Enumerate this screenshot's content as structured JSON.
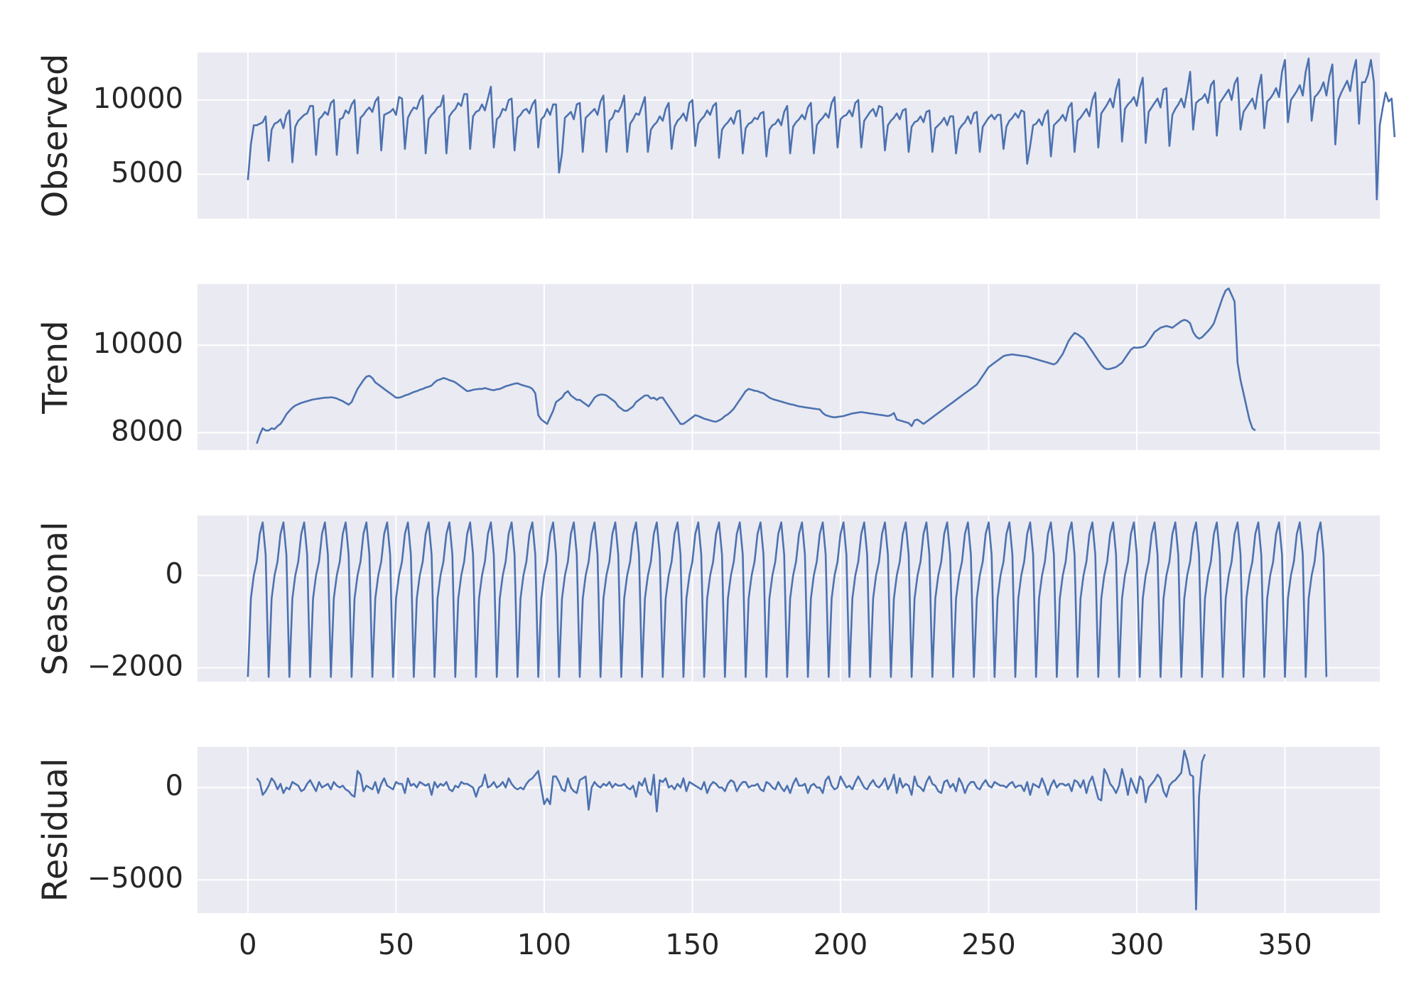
{
  "chart_data": [
    {
      "type": "line",
      "ylabel": "Observed",
      "ylim": [
        2000,
        13200
      ],
      "yticks": [
        5000,
        10000
      ],
      "ytick_labels": [
        "5000",
        "10000"
      ],
      "grid": true,
      "color": "#4c72b0",
      "values": [
        4600,
        7000,
        8300,
        8300,
        8400,
        8500,
        8900,
        5900,
        8000,
        8400,
        8500,
        8700,
        8100,
        9000,
        9300,
        5800,
        8200,
        8600,
        8800,
        9000,
        9100,
        9600,
        9600,
        6300,
        8700,
        8900,
        9200,
        9000,
        9800,
        10000,
        6300,
        8700,
        8800,
        9300,
        9100,
        9700,
        10000,
        6400,
        8800,
        9000,
        9300,
        9500,
        9200,
        9900,
        10200,
        6600,
        9000,
        9100,
        9200,
        9400,
        9000,
        10200,
        10100,
        6700,
        8800,
        9200,
        9500,
        9400,
        10000,
        10300,
        6400,
        8700,
        9000,
        9200,
        9500,
        9600,
        10300,
        6400,
        8900,
        9200,
        9400,
        9800,
        9600,
        10400,
        10400,
        6700,
        8900,
        9200,
        9300,
        9700,
        9300,
        10100,
        10900,
        6800,
        8700,
        8900,
        9400,
        9300,
        10000,
        10100,
        6600,
        8800,
        9000,
        9300,
        9400,
        9100,
        9700,
        10000,
        6800,
        8700,
        8900,
        9400,
        9000,
        9700,
        9700,
        5100,
        6400,
        8800,
        9000,
        9200,
        8700,
        9700,
        9800,
        6500,
        8800,
        9000,
        9200,
        9400,
        9000,
        9900,
        10300,
        6500,
        8600,
        8800,
        9300,
        9200,
        9600,
        10300,
        6500,
        8400,
        8700,
        9100,
        9000,
        9600,
        10200,
        6500,
        8000,
        8300,
        8500,
        8900,
        8600,
        9400,
        9800,
        6700,
        8200,
        8600,
        8800,
        9100,
        8600,
        9800,
        10000,
        6900,
        8400,
        8700,
        8900,
        9300,
        9000,
        9600,
        9800,
        6100,
        8000,
        8300,
        8500,
        8800,
        8400,
        9200,
        9300,
        6400,
        8100,
        8400,
        8500,
        8800,
        8700,
        9100,
        9200,
        6200,
        8000,
        8300,
        8400,
        8700,
        8300,
        9200,
        9600,
        6400,
        8200,
        8500,
        8700,
        9000,
        8700,
        9500,
        9800,
        6400,
        8300,
        8600,
        8800,
        9100,
        8800,
        9800,
        10200,
        6800,
        8700,
        8900,
        9000,
        9300,
        8900,
        9800,
        10000,
        6800,
        8600,
        8900,
        9200,
        9400,
        8900,
        9600,
        9500,
        6600,
        8300,
        8600,
        8800,
        9100,
        8700,
        9300,
        9400,
        6500,
        8200,
        8500,
        8600,
        8900,
        8500,
        9200,
        9300,
        6500,
        8100,
        8300,
        8500,
        8800,
        8300,
        8900,
        8900,
        6400,
        8000,
        8300,
        8500,
        8900,
        8400,
        9100,
        9200,
        6500,
        8200,
        8500,
        8800,
        9000,
        8700,
        9000,
        9000,
        6700,
        8200,
        8600,
        8800,
        9100,
        8800,
        9300,
        9200,
        5700,
        6900,
        8300,
        8400,
        8700,
        8300,
        9000,
        9300,
        6200,
        8300,
        8500,
        8700,
        9000,
        8600,
        9500,
        9800,
        6500,
        8600,
        8800,
        9100,
        9400,
        8900,
        10000,
        10500,
        6800,
        9100,
        9400,
        9700,
        10100,
        9500,
        10700,
        11400,
        7200,
        9400,
        9700,
        9900,
        10200,
        9600,
        10800,
        11500,
        7100,
        9200,
        9500,
        9800,
        10100,
        9500,
        10700,
        10800,
        6900,
        9000,
        9400,
        9700,
        10100,
        9500,
        10600,
        11900,
        8000,
        9800,
        10000,
        10100,
        10400,
        9800,
        11000,
        11300,
        7600,
        9800,
        10100,
        10400,
        10700,
        10000,
        11100,
        11500,
        8000,
        9200,
        9500,
        9800,
        10100,
        9400,
        10800,
        11700,
        8100,
        9900,
        10100,
        10400,
        10800,
        10200,
        11900,
        12700,
        8500,
        10000,
        10300,
        10600,
        11000,
        10300,
        11900,
        12800,
        8600,
        10200,
        10400,
        10700,
        11200,
        10300,
        11600,
        12400,
        7000,
        10000,
        10500,
        10900,
        11300,
        10600,
        11900,
        12700,
        8400,
        11200,
        11200,
        11700,
        12700,
        11200,
        3300,
        8300,
        9500,
        10500,
        9900,
        10100,
        7500
      ],
      "x_start": 0,
      "xlim": [
        -17,
        382
      ]
    },
    {
      "type": "line",
      "ylabel": "Trend",
      "ylim": [
        7600,
        11400
      ],
      "yticks": [
        8000,
        10000
      ],
      "ytick_labels": [
        "8000",
        "10000"
      ],
      "grid": true,
      "color": "#4c72b0",
      "values": [
        7750,
        7950,
        8100,
        8050,
        8050,
        8100,
        8080,
        8150,
        8200,
        8300,
        8420,
        8500,
        8570,
        8620,
        8650,
        8680,
        8700,
        8720,
        8740,
        8760,
        8770,
        8780,
        8790,
        8800,
        8800,
        8810,
        8800,
        8780,
        8750,
        8720,
        8680,
        8640,
        8700,
        8850,
        9000,
        9100,
        9200,
        9280,
        9300,
        9250,
        9150,
        9100,
        9050,
        9000,
        8950,
        8900,
        8850,
        8800,
        8800,
        8820,
        8850,
        8870,
        8900,
        8930,
        8950,
        8980,
        9000,
        9030,
        9050,
        9080,
        9150,
        9200,
        9220,
        9250,
        9230,
        9200,
        9180,
        9150,
        9100,
        9050,
        9000,
        8950,
        8960,
        8980,
        8990,
        9000,
        9000,
        9020,
        9000,
        8980,
        8970,
        8990,
        9000,
        9030,
        9060,
        9080,
        9100,
        9120,
        9130,
        9100,
        9080,
        9060,
        9040,
        9000,
        8900,
        8400,
        8300,
        8250,
        8200,
        8350,
        8500,
        8700,
        8750,
        8800,
        8900,
        8950,
        8850,
        8800,
        8750,
        8750,
        8700,
        8650,
        8600,
        8700,
        8800,
        8850,
        8870,
        8870,
        8850,
        8800,
        8750,
        8700,
        8600,
        8550,
        8500,
        8500,
        8550,
        8600,
        8700,
        8750,
        8800,
        8850,
        8850,
        8780,
        8800,
        8750,
        8800,
        8800,
        8700,
        8600,
        8500,
        8400,
        8300,
        8200,
        8200,
        8250,
        8300,
        8350,
        8400,
        8380,
        8350,
        8320,
        8300,
        8280,
        8260,
        8250,
        8280,
        8320,
        8380,
        8420,
        8480,
        8550,
        8650,
        8750,
        8850,
        8950,
        9000,
        8980,
        8960,
        8950,
        8920,
        8900,
        8850,
        8800,
        8770,
        8750,
        8730,
        8710,
        8690,
        8670,
        8650,
        8640,
        8620,
        8600,
        8590,
        8580,
        8570,
        8560,
        8550,
        8540,
        8530,
        8450,
        8400,
        8380,
        8360,
        8350,
        8360,
        8370,
        8380,
        8400,
        8420,
        8440,
        8450,
        8460,
        8470,
        8460,
        8450,
        8440,
        8430,
        8420,
        8410,
        8400,
        8390,
        8380,
        8400,
        8450,
        8300,
        8280,
        8260,
        8240,
        8220,
        8150,
        8280,
        8300,
        8250,
        8200,
        8250,
        8300,
        8350,
        8400,
        8450,
        8500,
        8550,
        8600,
        8650,
        8700,
        8750,
        8800,
        8850,
        8900,
        8950,
        9000,
        9050,
        9100,
        9200,
        9300,
        9400,
        9500,
        9550,
        9600,
        9650,
        9700,
        9750,
        9770,
        9780,
        9790,
        9780,
        9770,
        9760,
        9750,
        9740,
        9720,
        9700,
        9680,
        9660,
        9640,
        9620,
        9600,
        9580,
        9560,
        9600,
        9700,
        9800,
        9950,
        10100,
        10200,
        10280,
        10250,
        10200,
        10150,
        10050,
        9950,
        9850,
        9750,
        9650,
        9550,
        9480,
        9450,
        9460,
        9480,
        9500,
        9550,
        9600,
        9700,
        9800,
        9900,
        9950,
        9940,
        9950,
        9960,
        10000,
        10100,
        10200,
        10300,
        10350,
        10400,
        10420,
        10440,
        10420,
        10400,
        10450,
        10500,
        10550,
        10580,
        10560,
        10500,
        10300,
        10200,
        10150,
        10180,
        10250,
        10320,
        10400,
        10500,
        10700,
        10900,
        11100,
        11250,
        11300,
        11150,
        11000,
        9600,
        9200,
        8900,
        8600,
        8300,
        8100,
        8050
      ],
      "x_start": 3,
      "xlim": [
        -17,
        382
      ]
    },
    {
      "type": "line",
      "ylabel": "Seasonal",
      "ylim": [
        -2300,
        1300
      ],
      "yticks": [
        -2000,
        0
      ],
      "ytick_labels": [
        "−2000",
        "0"
      ],
      "grid": true,
      "color": "#4c72b0",
      "period": 7,
      "pattern": [
        -2200,
        -500,
        0,
        300,
        900,
        1150,
        450
      ],
      "values": [
        -2200,
        -500,
        0,
        300,
        900,
        1150,
        450
      ],
      "count": 365,
      "x_start": 0,
      "xlim": [
        -17,
        382
      ]
    },
    {
      "type": "line",
      "ylabel": "Residual",
      "ylim": [
        -6800,
        2200
      ],
      "yticks": [
        -5000,
        0
      ],
      "ytick_labels": [
        "−5000",
        "0"
      ],
      "grid": true,
      "color": "#4c72b0",
      "values": [
        500,
        300,
        -400,
        -200,
        100,
        500,
        300,
        -100,
        200,
        -300,
        0,
        -100,
        300,
        200,
        100,
        -200,
        -100,
        200,
        400,
        100,
        -200,
        300,
        0,
        100,
        200,
        -100,
        300,
        100,
        0,
        100,
        -100,
        -200,
        -400,
        -500,
        900,
        700,
        -200,
        100,
        0,
        -100,
        300,
        -300,
        200,
        500,
        100,
        0,
        -100,
        300,
        200,
        200,
        -300,
        500,
        100,
        200,
        0,
        300,
        200,
        100,
        200,
        -400,
        300,
        0,
        200,
        100,
        300,
        -100,
        -200,
        100,
        0,
        300,
        200,
        200,
        100,
        0,
        -500,
        0,
        100,
        700,
        0,
        100,
        300,
        0,
        100,
        300,
        0,
        500,
        200,
        0,
        -100,
        0,
        -100,
        200,
        400,
        500,
        700,
        900,
        0,
        -900,
        -600,
        -900,
        600,
        600,
        300,
        -100,
        -200,
        500,
        0,
        -200,
        -300,
        400,
        500,
        600,
        -1200,
        0,
        300,
        100,
        0,
        200,
        100,
        300,
        0,
        200,
        100,
        100,
        200,
        0,
        -100,
        100,
        -500,
        300,
        100,
        500,
        -200,
        -400,
        700,
        -1300,
        400,
        300,
        500,
        0,
        100,
        -100,
        200,
        0,
        500,
        -200,
        300,
        200,
        100,
        0,
        -100,
        300,
        -300,
        100,
        300,
        200,
        0,
        0,
        -200,
        200,
        400,
        300,
        -200,
        100,
        300,
        300,
        0,
        100,
        100,
        200,
        -100,
        -200,
        300,
        200,
        0,
        -100,
        300,
        0,
        -200,
        100,
        -300,
        200,
        500,
        100,
        100,
        200,
        -300,
        100,
        200,
        0,
        0,
        -300,
        400,
        600,
        100,
        -100,
        0,
        600,
        300,
        0,
        100,
        -100,
        300,
        600,
        300,
        0,
        -100,
        200,
        400,
        100,
        0,
        200,
        500,
        -100,
        200,
        700,
        -300,
        500,
        0,
        200,
        100,
        -400,
        600,
        100,
        0,
        -200,
        300,
        600,
        200,
        100,
        -200,
        -300,
        300,
        400,
        0,
        200,
        -200,
        500,
        200,
        -300,
        100,
        300,
        300,
        0,
        -100,
        200,
        400,
        100,
        0,
        300,
        200,
        100,
        100,
        0,
        200,
        300,
        0,
        100,
        100,
        -200,
        300,
        -400,
        200,
        100,
        0,
        500,
        100,
        -400,
        100,
        400,
        0,
        200,
        200,
        100,
        200,
        -200,
        400,
        300,
        0,
        400,
        -300,
        300,
        600,
        0,
        -600,
        -700,
        1000,
        700,
        200,
        0,
        -300,
        100,
        1000,
        400,
        -400,
        500,
        100,
        -300,
        600,
        400,
        -800,
        0,
        200,
        400,
        700,
        500,
        -200,
        -500,
        100,
        300,
        400,
        600,
        800,
        2000,
        1500,
        700,
        600,
        -6600,
        -500,
        1400,
        1800
      ],
      "x_start": 3,
      "xlim": [
        -17,
        382
      ]
    }
  ],
  "x_axis": {
    "ticks": [
      0,
      50,
      100,
      150,
      200,
      250,
      300,
      350
    ],
    "tick_labels": [
      "0",
      "50",
      "100",
      "150",
      "200",
      "250",
      "300",
      "350"
    ]
  }
}
